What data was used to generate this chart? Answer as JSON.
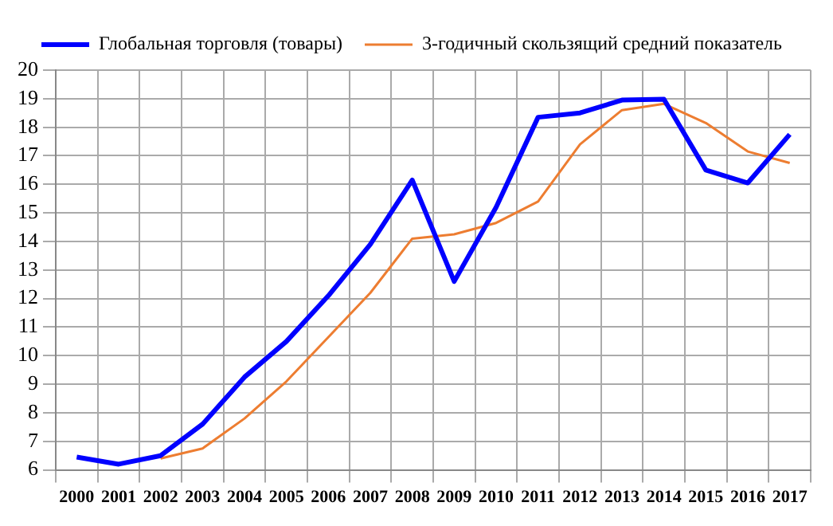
{
  "chart_data": {
    "type": "line",
    "categories": [
      "2000",
      "2001",
      "2002",
      "2003",
      "2004",
      "2005",
      "2006",
      "2007",
      "2008",
      "2009",
      "2010",
      "2011",
      "2012",
      "2013",
      "2014",
      "2015",
      "2016",
      "2017"
    ],
    "series": [
      {
        "name": "Глобальная торговля (товары)",
        "color": "#0000ff",
        "values": [
          6.45,
          6.2,
          6.5,
          7.6,
          9.25,
          10.5,
          12.1,
          13.9,
          16.15,
          12.6,
          15.2,
          18.35,
          18.5,
          18.95,
          18.98,
          16.5,
          16.05,
          17.75
        ]
      },
      {
        "name": "3-годичный скользящий средний показатель",
        "color": "#ed7d31",
        "values": [
          null,
          null,
          6.4,
          6.75,
          7.8,
          9.1,
          10.65,
          12.2,
          14.1,
          14.25,
          14.65,
          15.4,
          17.4,
          18.6,
          18.82,
          18.15,
          17.15,
          16.75
        ]
      }
    ],
    "ylim": [
      6,
      20
    ],
    "yticks": [
      6,
      7,
      8,
      9,
      10,
      11,
      12,
      13,
      14,
      15,
      16,
      17,
      18,
      19,
      20
    ],
    "grid": true,
    "legend": "top",
    "marker": "none",
    "line_style": "solid"
  }
}
